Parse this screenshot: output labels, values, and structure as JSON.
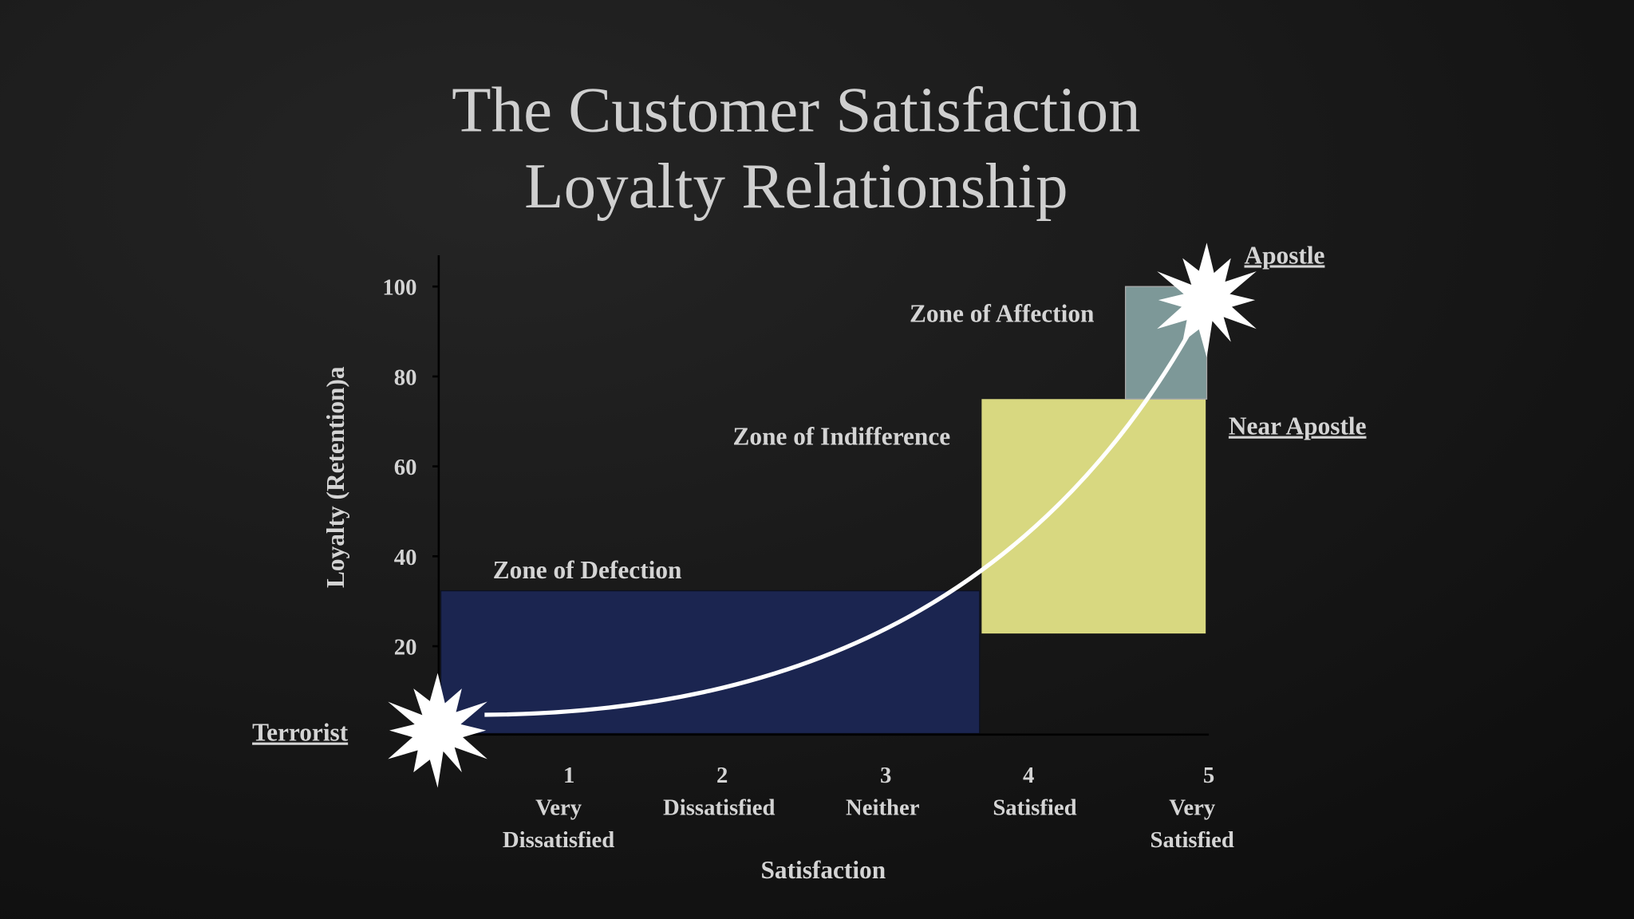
{
  "title": [
    "The Customer Satisfaction",
    "Loyalty Relationship"
  ],
  "y_axis": {
    "label": "Loyalty (Retention)a",
    "ticks": [
      "100",
      "80",
      "60",
      "40",
      "20"
    ]
  },
  "x_axis": {
    "label": "Satisfaction",
    "categories": [
      {
        "number": "1",
        "label": [
          "Very",
          "Dissatisfied"
        ]
      },
      {
        "number": "2",
        "label": [
          "Dissatisfied"
        ]
      },
      {
        "number": "3",
        "label": [
          "Neither"
        ]
      },
      {
        "number": "4",
        "label": [
          "Satisfied"
        ]
      },
      {
        "number": "5",
        "label": [
          "Very",
          "Satisfied"
        ]
      }
    ]
  },
  "zones": {
    "affection": "Zone of Affection",
    "indifference": "Zone of Indifference",
    "defection": "Zone of Defection"
  },
  "customers": {
    "apostle": "Apostle",
    "near_apostle": "Near Apostle",
    "terrorist": "Terrorist"
  }
}
